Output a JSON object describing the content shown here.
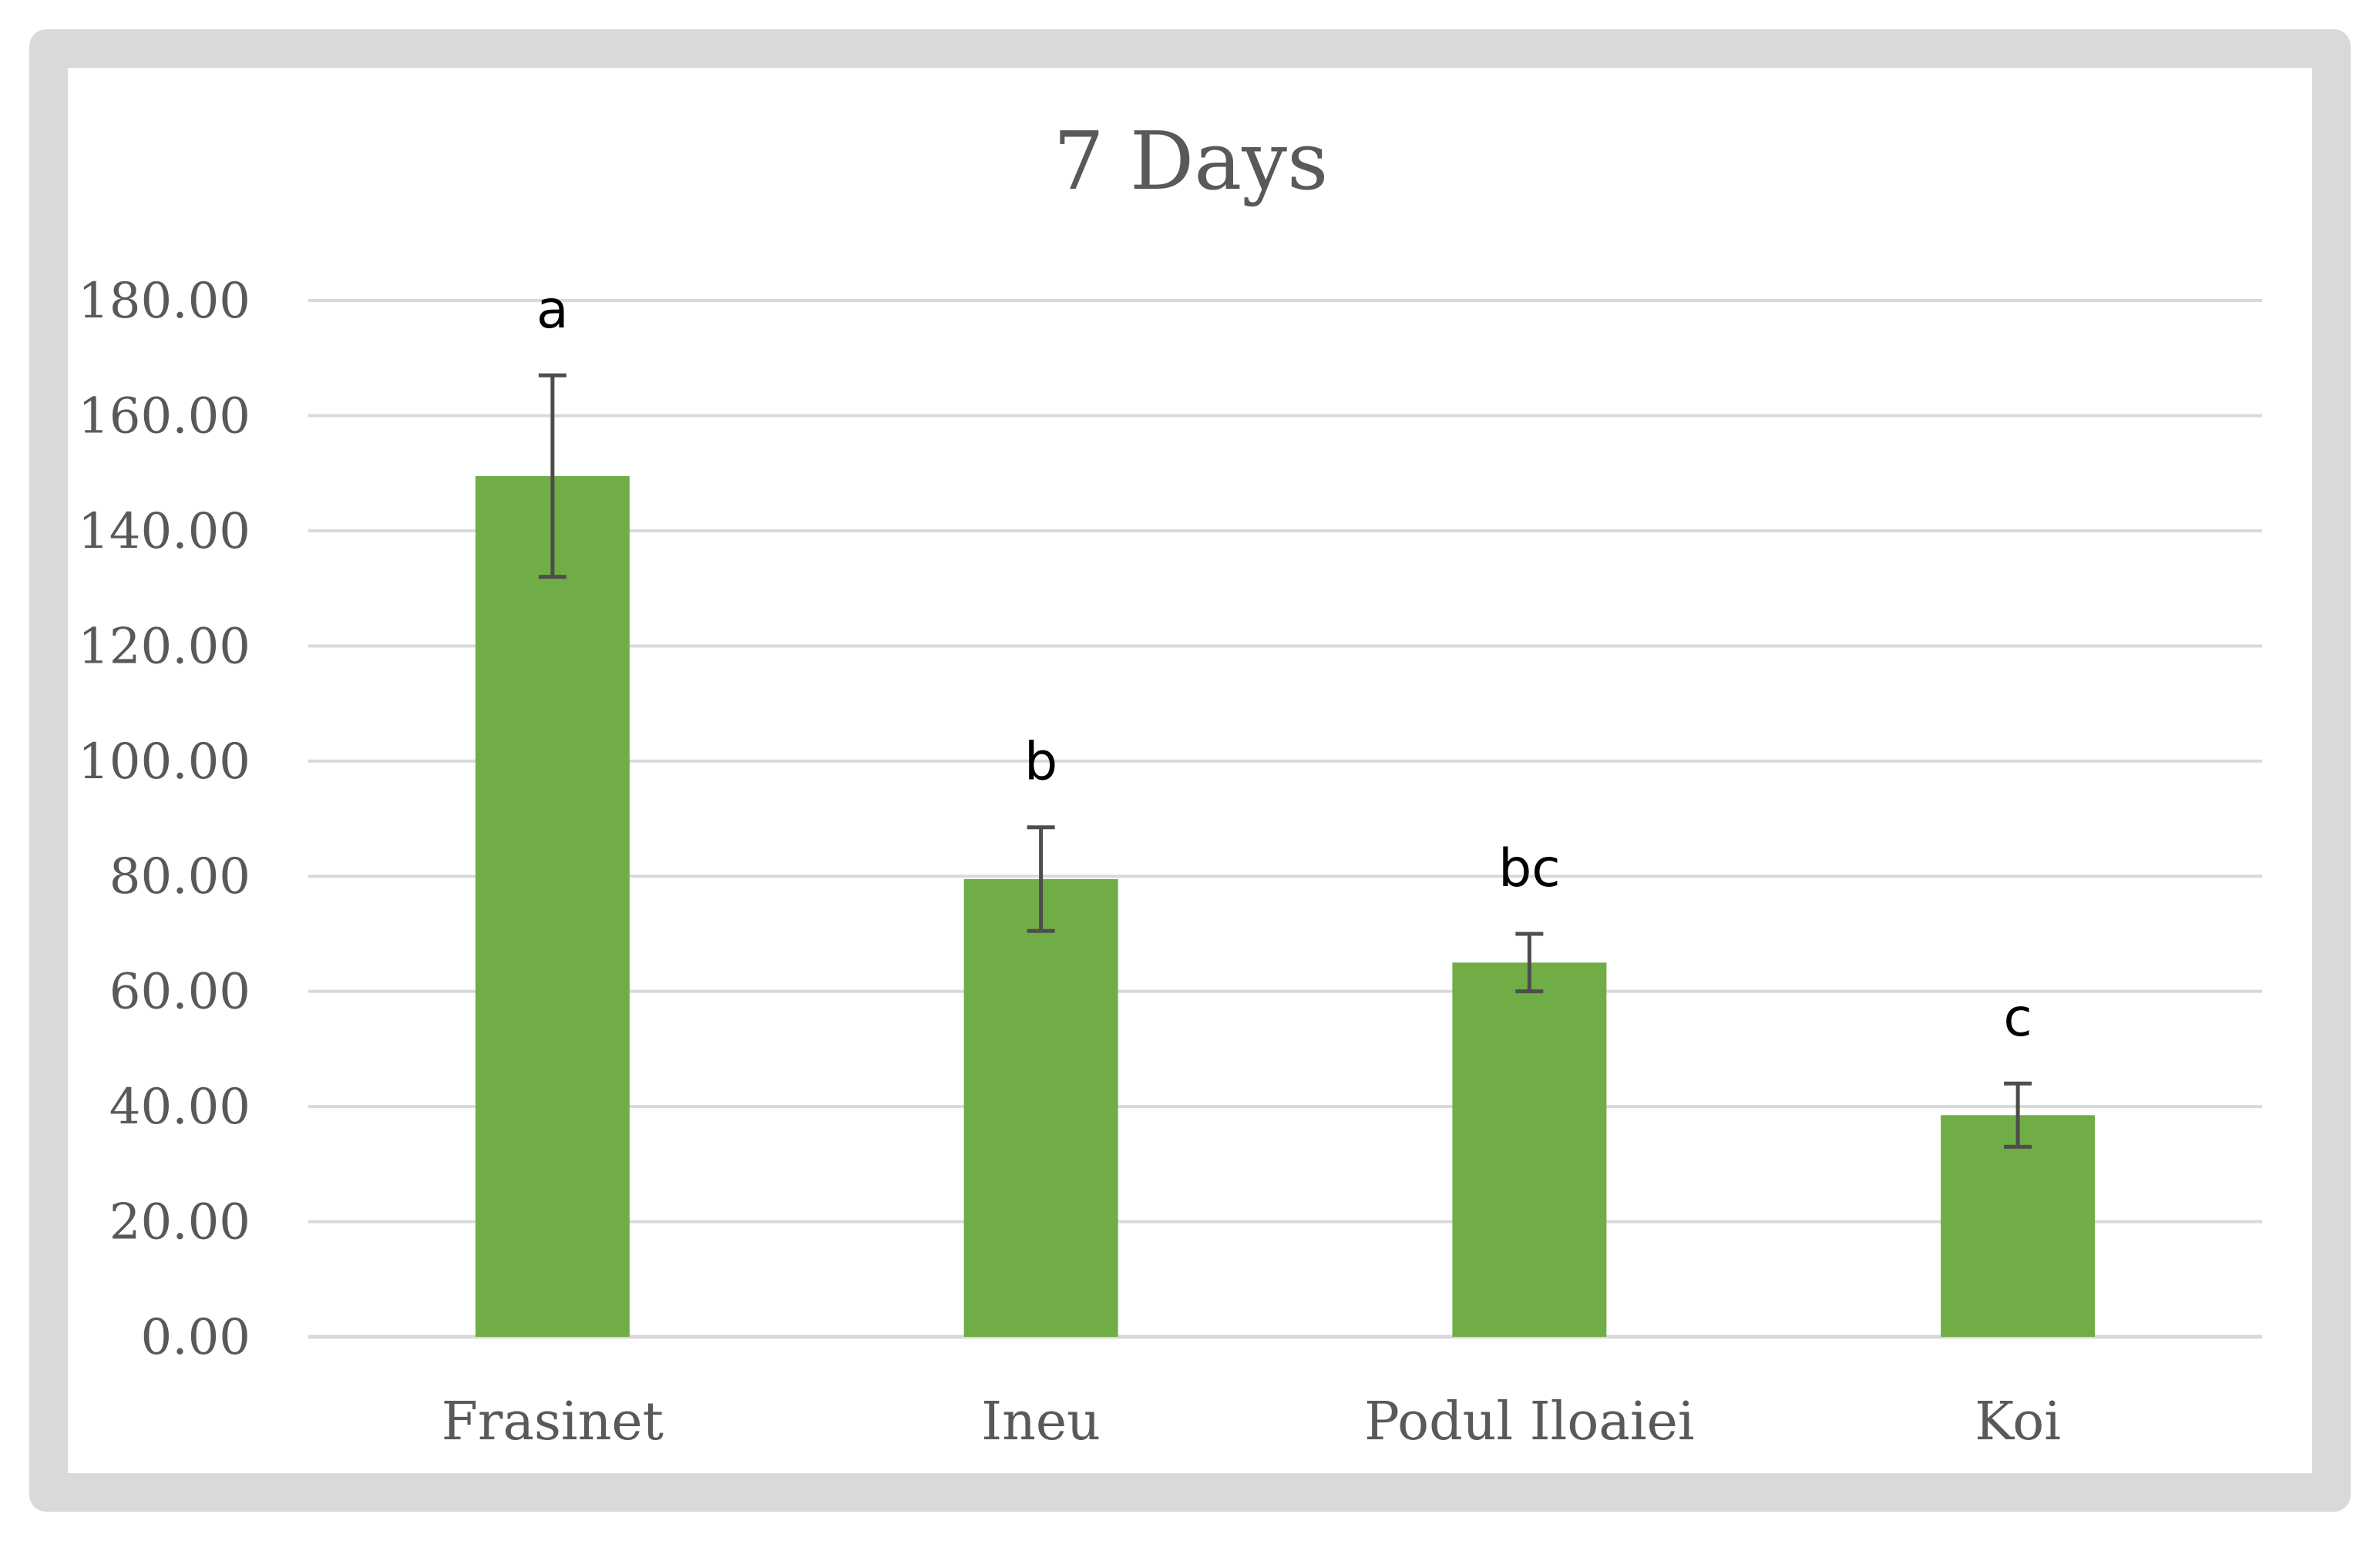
{
  "chart_data": {
    "type": "bar",
    "title": "7 Days",
    "xlabel": "",
    "ylabel": "",
    "ylim": [
      0,
      180
    ],
    "yticks": [
      0,
      20,
      40,
      60,
      80,
      100,
      120,
      140,
      160,
      180
    ],
    "ytick_labels": [
      "0.00",
      "20.00",
      "40.00",
      "60.00",
      "80.00",
      "100.00",
      "120.00",
      "140.00",
      "160.00",
      "180.00"
    ],
    "grid": true,
    "legend": "none",
    "categories": [
      "Frasinet",
      "Ineu",
      "Podul Iloaiei",
      "Koi"
    ],
    "values": [
      149.5,
      79.5,
      65.0,
      38.5
    ],
    "error": [
      17.5,
      9.0,
      5.0,
      5.5
    ],
    "significance_labels": [
      "a",
      "b",
      "bc",
      "c"
    ]
  },
  "colors": {
    "bar": "#70ad47",
    "error_bar": "#4d4d4d",
    "grid": "#d9d9d9",
    "frame": "#d9d9d9",
    "text": "#595959"
  }
}
